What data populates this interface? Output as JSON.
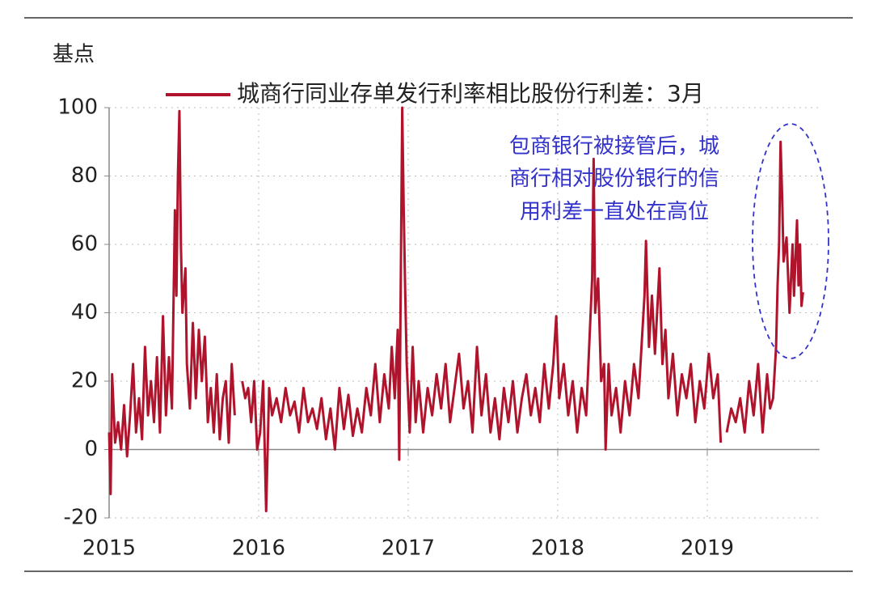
{
  "chart_data": {
    "type": "line",
    "y_label": "基点",
    "annotation": [
      "包商银行被接管后，城",
      "商行相对股份银行的信",
      "用利差一直处在高位"
    ],
    "x": [
      2015.0,
      2015.01,
      2015.02,
      2015.04,
      2015.06,
      2015.08,
      2015.1,
      2015.12,
      2015.14,
      2015.16,
      2015.18,
      2015.2,
      2015.22,
      2015.24,
      2015.26,
      2015.28,
      2015.3,
      2015.32,
      2015.34,
      2015.36,
      2015.38,
      2015.4,
      2015.42,
      2015.44,
      2015.45,
      2015.46,
      2015.47,
      2015.48,
      2015.49,
      2015.51,
      2015.52,
      2015.54,
      2015.56,
      2015.58,
      2015.6,
      2015.62,
      2015.64,
      2015.66,
      2015.68,
      2015.7,
      2015.72,
      2015.74,
      2015.76,
      2015.78,
      2015.8,
      2015.82,
      2015.84,
      2015.86,
      2015.89,
      2015.91,
      2015.93,
      2015.95,
      2015.97,
      2015.99,
      2016.01,
      2016.03,
      2016.05,
      2016.07,
      2016.09,
      2016.12,
      2016.15,
      2016.18,
      2016.21,
      2016.24,
      2016.27,
      2016.3,
      2016.33,
      2016.36,
      2016.39,
      2016.42,
      2016.45,
      2016.48,
      2016.51,
      2016.54,
      2016.57,
      2016.6,
      2016.63,
      2016.66,
      2016.69,
      2016.72,
      2016.75,
      2016.78,
      2016.81,
      2016.84,
      2016.87,
      2016.89,
      2016.91,
      2016.93,
      2016.94,
      2016.95,
      2016.96,
      2016.97,
      2016.98,
      2016.99,
      2017.01,
      2017.03,
      2017.05,
      2017.07,
      2017.1,
      2017.13,
      2017.16,
      2017.19,
      2017.22,
      2017.25,
      2017.28,
      2017.31,
      2017.34,
      2017.37,
      2017.4,
      2017.43,
      2017.46,
      2017.49,
      2017.52,
      2017.55,
      2017.58,
      2017.61,
      2017.64,
      2017.67,
      2017.7,
      2017.73,
      2017.76,
      2017.79,
      2017.82,
      2017.85,
      2017.88,
      2017.91,
      2017.94,
      2017.97,
      2017.99,
      2018.01,
      2018.04,
      2018.07,
      2018.1,
      2018.13,
      2018.16,
      2018.19,
      2018.21,
      2018.23,
      2018.24,
      2018.25,
      2018.27,
      2018.29,
      2018.31,
      2018.32,
      2018.34,
      2018.36,
      2018.39,
      2018.42,
      2018.45,
      2018.48,
      2018.51,
      2018.54,
      2018.56,
      2018.58,
      2018.59,
      2018.61,
      2018.63,
      2018.65,
      2018.68,
      2018.7,
      2018.72,
      2018.74,
      2018.77,
      2018.8,
      2018.83,
      2018.86,
      2018.89,
      2018.92,
      2018.95,
      2018.98,
      2019.01,
      2019.04,
      2019.07,
      2019.09,
      2019.11,
      2019.13,
      2019.16,
      2019.19,
      2019.22,
      2019.25,
      2019.28,
      2019.31,
      2019.34,
      2019.37,
      2019.4,
      2019.42,
      2019.44,
      2019.46,
      2019.47,
      2019.48,
      2019.49,
      2019.5,
      2019.51,
      2019.53,
      2019.55,
      2019.57,
      2019.58,
      2019.6,
      2019.61,
      2019.62,
      2019.63,
      2019.64
    ],
    "series": [
      {
        "name": "城商行同业存单发行利率相比股份行利差：3月",
        "color": "#b0142c",
        "values": [
          5,
          -13,
          22,
          2,
          8,
          0,
          13,
          -2,
          10,
          25,
          5,
          15,
          3,
          30,
          10,
          20,
          8,
          27,
          5,
          39,
          10,
          27,
          12,
          70,
          45,
          80,
          99,
          60,
          40,
          53,
          25,
          12,
          37,
          15,
          35,
          20,
          33,
          8,
          18,
          5,
          22,
          3,
          15,
          20,
          2,
          25,
          10,
          null,
          20,
          15,
          18,
          8,
          20,
          0,
          5,
          20,
          -18,
          18,
          10,
          15,
          8,
          18,
          10,
          14,
          5,
          18,
          8,
          12,
          6,
          15,
          3,
          12,
          0,
          18,
          6,
          16,
          4,
          12,
          5,
          18,
          10,
          25,
          8,
          22,
          12,
          30,
          15,
          35,
          -3,
          48,
          100,
          70,
          46,
          25,
          5,
          30,
          8,
          20,
          5,
          18,
          10,
          22,
          12,
          25,
          8,
          18,
          28,
          12,
          20,
          5,
          30,
          10,
          22,
          5,
          15,
          3,
          18,
          8,
          20,
          5,
          15,
          22,
          10,
          18,
          8,
          25,
          12,
          25,
          39,
          15,
          25,
          10,
          20,
          5,
          18,
          10,
          30,
          50,
          85,
          40,
          50,
          20,
          25,
          0,
          25,
          10,
          18,
          5,
          20,
          10,
          25,
          15,
          30,
          45,
          61,
          30,
          45,
          28,
          53,
          25,
          35,
          15,
          28,
          10,
          22,
          15,
          25,
          8,
          20,
          12,
          28,
          15,
          22,
          2,
          null,
          5,
          12,
          8,
          15,
          5,
          20,
          10,
          25,
          5,
          22,
          12,
          15,
          30,
          48,
          60,
          90,
          75,
          55,
          62,
          40,
          60,
          45,
          67,
          48,
          60,
          42,
          46
        ]
      }
    ],
    "xlim": [
      2015,
      2019.75
    ],
    "xticks": [
      2015,
      2016,
      2017,
      2018,
      2019
    ],
    "ylim": [
      -20,
      100
    ],
    "yticks": [
      -20,
      0,
      20,
      40,
      60,
      80,
      100
    ],
    "grid": true
  }
}
